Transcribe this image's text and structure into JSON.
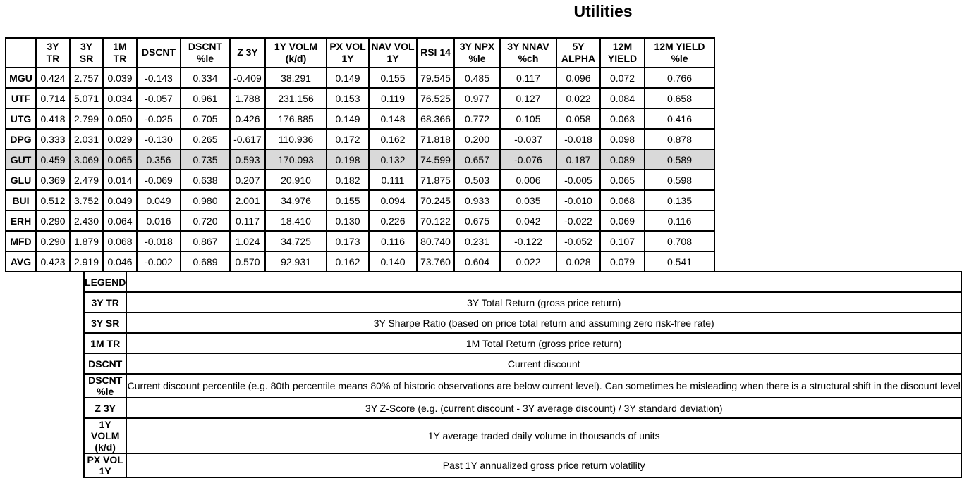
{
  "title": "Utilities",
  "colors": {
    "highlight_row_bg": "#d9d9d9",
    "border": "#000000",
    "page_bg": "#ffffff",
    "text": "#000000"
  },
  "main_table": {
    "columns": [
      "",
      "3Y\nTR",
      "3Y\nSR",
      "1M\nTR",
      "DSCNT",
      "DSCNT\n%le",
      "Z 3Y",
      "1Y VOLM\n(k/d)",
      "PX VOL\n1Y",
      "NAV VOL\n1Y",
      "RSI 14",
      "3Y NPX\n%le",
      "3Y NNAV\n%ch",
      "5Y\nALPHA",
      "12M\nYIELD",
      "12M YIELD\n%le"
    ],
    "rows": [
      {
        "ticker": "MGU",
        "highlight": false,
        "values": [
          "0.424",
          "2.757",
          "0.039",
          "-0.143",
          "0.334",
          "-0.409",
          "38.291",
          "0.149",
          "0.155",
          "79.545",
          "0.485",
          "0.117",
          "0.096",
          "0.072",
          "0.766"
        ]
      },
      {
        "ticker": "UTF",
        "highlight": false,
        "values": [
          "0.714",
          "5.071",
          "0.034",
          "-0.057",
          "0.961",
          "1.788",
          "231.156",
          "0.153",
          "0.119",
          "76.525",
          "0.977",
          "0.127",
          "0.022",
          "0.084",
          "0.658"
        ]
      },
      {
        "ticker": "UTG",
        "highlight": false,
        "values": [
          "0.418",
          "2.799",
          "0.050",
          "-0.025",
          "0.705",
          "0.426",
          "176.885",
          "0.149",
          "0.148",
          "68.366",
          "0.772",
          "0.105",
          "0.058",
          "0.063",
          "0.416"
        ]
      },
      {
        "ticker": "DPG",
        "highlight": false,
        "values": [
          "0.333",
          "2.031",
          "0.029",
          "-0.130",
          "0.265",
          "-0.617",
          "110.936",
          "0.172",
          "0.162",
          "71.818",
          "0.200",
          "-0.037",
          "-0.018",
          "0.098",
          "0.878"
        ]
      },
      {
        "ticker": "GUT",
        "highlight": true,
        "values": [
          "0.459",
          "3.069",
          "0.065",
          "0.356",
          "0.735",
          "0.593",
          "170.093",
          "0.198",
          "0.132",
          "74.599",
          "0.657",
          "-0.076",
          "0.187",
          "0.089",
          "0.589"
        ]
      },
      {
        "ticker": "GLU",
        "highlight": false,
        "values": [
          "0.369",
          "2.479",
          "0.014",
          "-0.069",
          "0.638",
          "0.207",
          "20.910",
          "0.182",
          "0.111",
          "71.875",
          "0.503",
          "0.006",
          "-0.005",
          "0.065",
          "0.598"
        ]
      },
      {
        "ticker": "BUI",
        "highlight": false,
        "values": [
          "0.512",
          "3.752",
          "0.049",
          "0.049",
          "0.980",
          "2.001",
          "34.976",
          "0.155",
          "0.094",
          "70.245",
          "0.933",
          "0.035",
          "-0.010",
          "0.068",
          "0.135"
        ]
      },
      {
        "ticker": "ERH",
        "highlight": false,
        "values": [
          "0.290",
          "2.430",
          "0.064",
          "0.016",
          "0.720",
          "0.117",
          "18.410",
          "0.130",
          "0.226",
          "70.122",
          "0.675",
          "0.042",
          "-0.022",
          "0.069",
          "0.116"
        ]
      },
      {
        "ticker": "MFD",
        "highlight": false,
        "values": [
          "0.290",
          "1.879",
          "0.068",
          "-0.018",
          "0.867",
          "1.024",
          "34.725",
          "0.173",
          "0.116",
          "80.740",
          "0.231",
          "-0.122",
          "-0.052",
          "0.107",
          "0.708"
        ]
      },
      {
        "ticker": "AVG",
        "highlight": false,
        "values": [
          "0.423",
          "2.919",
          "0.046",
          "-0.002",
          "0.689",
          "0.570",
          "92.931",
          "0.162",
          "0.140",
          "73.760",
          "0.604",
          "0.022",
          "0.028",
          "0.079",
          "0.541"
        ]
      }
    ]
  },
  "legend_table": {
    "header": "LEGEND",
    "rows": [
      {
        "label": "3Y TR",
        "description": "3Y Total Return (gross price return)"
      },
      {
        "label": "3Y SR",
        "description": "3Y Sharpe Ratio (based on price total return and assuming zero risk-free rate)"
      },
      {
        "label": "1M TR",
        "description": "1M Total Return (gross price return)"
      },
      {
        "label": "DSCNT",
        "description": "Current discount"
      },
      {
        "label": "DSCNT %le",
        "description": "Current discount percentile (e.g. 80th percentile means 80% of historic observations are below current level). Can sometimes be misleading when there is a structural shift in the discount level"
      },
      {
        "label": "Z 3Y",
        "description": "3Y Z-Score (e.g. (current discount - 3Y average discount) / 3Y standard deviation)"
      },
      {
        "label": "1Y VOLM (k/d)",
        "description": "1Y average traded daily volume in thousands of units"
      },
      {
        "label": "PX VOL 1Y",
        "description": "Past 1Y annualized gross price return volatility"
      }
    ]
  }
}
